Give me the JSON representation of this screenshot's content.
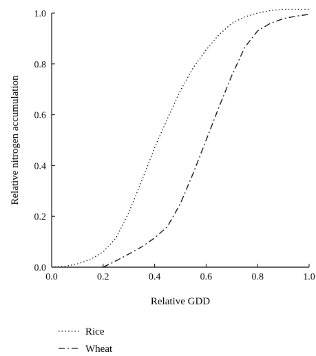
{
  "chart_data": {
    "type": "line",
    "xlabel": "Relative GDD",
    "ylabel": "Relative nitrogen accumulation",
    "xlim": [
      0.0,
      1.0
    ],
    "ylim": [
      0.0,
      1.0
    ],
    "xticks": [
      "0.0",
      "0.2",
      "0.4",
      "0.6",
      "0.8",
      "1.0"
    ],
    "yticks": [
      "0.0",
      "0.2",
      "0.4",
      "0.6",
      "0.8",
      "1.0"
    ],
    "grid": false,
    "legend_position": "bottom-left, below plot",
    "series": [
      {
        "name": "Rice",
        "line_style": "dotted",
        "color": "#000000",
        "x": [
          0.0,
          0.05,
          0.1,
          0.15,
          0.2,
          0.25,
          0.3,
          0.35,
          0.4,
          0.45,
          0.5,
          0.55,
          0.6,
          0.65,
          0.7,
          0.75,
          0.8,
          0.85,
          0.9,
          0.95,
          1.0
        ],
        "y": [
          0.0,
          0.003,
          0.013,
          0.03,
          0.06,
          0.115,
          0.215,
          0.34,
          0.47,
          0.585,
          0.695,
          0.785,
          0.855,
          0.915,
          0.96,
          0.985,
          1.0,
          1.01,
          1.015,
          1.015,
          1.015
        ]
      },
      {
        "name": "Wheat",
        "line_style": "dash-dot",
        "color": "#000000",
        "x": [
          0.2,
          0.25,
          0.3,
          0.35,
          0.4,
          0.45,
          0.5,
          0.55,
          0.6,
          0.65,
          0.7,
          0.75,
          0.8,
          0.85,
          0.9,
          0.95,
          1.0
        ],
        "y": [
          0.0,
          0.025,
          0.052,
          0.08,
          0.115,
          0.16,
          0.25,
          0.37,
          0.5,
          0.63,
          0.755,
          0.865,
          0.93,
          0.96,
          0.978,
          0.988,
          0.995
        ]
      }
    ]
  }
}
